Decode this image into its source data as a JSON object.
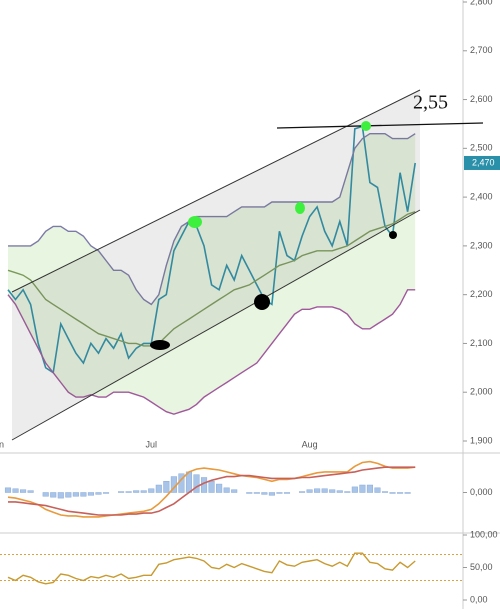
{
  "chart_data": [
    {
      "type": "line",
      "categories": [
        "n",
        null,
        null,
        null,
        null,
        null,
        null,
        null,
        null,
        null,
        null,
        null,
        null,
        null,
        null,
        null,
        null,
        null,
        null,
        "Jul",
        null,
        null,
        null,
        null,
        null,
        null,
        null,
        null,
        null,
        null,
        null,
        null,
        null,
        null,
        null,
        null,
        null,
        null,
        null,
        null,
        "Aug",
        null,
        null,
        null,
        null,
        null,
        null,
        null,
        null,
        null,
        null,
        null,
        null,
        null,
        null
      ],
      "series": [
        {
          "name": "price",
          "color": "#2a8fa8",
          "values": [
            2210,
            2190,
            2210,
            2180,
            2100,
            2050,
            2040,
            2140,
            2110,
            2080,
            2060,
            2100,
            2080,
            2110,
            2090,
            2120,
            2070,
            2090,
            2100,
            2100,
            2190,
            2200,
            2290,
            2320,
            2350,
            2340,
            2300,
            2220,
            2210,
            2260,
            2230,
            2280,
            2250,
            2220,
            2190,
            2180,
            2330,
            2280,
            2270,
            2320,
            2360,
            2380,
            2330,
            2300,
            2350,
            2300,
            2540,
            2545,
            2430,
            2420,
            2340,
            2320,
            2450,
            2370,
            2470
          ]
        },
        {
          "name": "upper",
          "color": "#7b7ba8",
          "values": [
            2300,
            2300,
            2300,
            2300,
            2310,
            2330,
            2340,
            2340,
            2330,
            2330,
            2320,
            2300,
            2290,
            2270,
            2250,
            2250,
            2240,
            2210,
            2190,
            2180,
            2200,
            2260,
            2310,
            2340,
            2350,
            2360,
            2360,
            2360,
            2360,
            2360,
            2370,
            2380,
            2380,
            2380,
            2380,
            2390,
            2390,
            2390,
            2390,
            2390,
            2390,
            2390,
            2390,
            2390,
            2400,
            2450,
            2500,
            2520,
            2530,
            2530,
            2530,
            2520,
            2520,
            2520,
            2530
          ]
        },
        {
          "name": "lower",
          "color": "#a0589c",
          "values": [
            2200,
            2180,
            2150,
            2120,
            2090,
            2060,
            2040,
            2020,
            2000,
            1990,
            1990,
            1995,
            1990,
            1990,
            2000,
            2000,
            2000,
            1995,
            1990,
            1980,
            1970,
            1960,
            1955,
            1960,
            1965,
            1975,
            1990,
            2000,
            2010,
            2020,
            2030,
            2040,
            2050,
            2060,
            2080,
            2100,
            2120,
            2140,
            2160,
            2170,
            2170,
            2175,
            2175,
            2175,
            2170,
            2160,
            2140,
            2130,
            2130,
            2140,
            2150,
            2160,
            2180,
            2210,
            2210
          ]
        },
        {
          "name": "middle",
          "color": "#7a9a5a",
          "values": [
            2250,
            2245,
            2240,
            2230,
            2210,
            2190,
            2180,
            2170,
            2160,
            2150,
            2140,
            2130,
            2120,
            2115,
            2110,
            2105,
            2100,
            2100,
            2095,
            2095,
            2100,
            2115,
            2130,
            2140,
            2150,
            2160,
            2170,
            2180,
            2190,
            2200,
            2210,
            2215,
            2220,
            2230,
            2240,
            2250,
            2260,
            2265,
            2270,
            2280,
            2285,
            2290,
            2290,
            2290,
            2295,
            2300,
            2310,
            2320,
            2330,
            2335,
            2340,
            2345,
            2355,
            2365,
            2370
          ]
        }
      ],
      "ylim": [
        1900,
        2800
      ],
      "yticks": [
        {
          "value": 1900,
          "label": "1,900"
        },
        {
          "value": 2000,
          "label": "2,000"
        },
        {
          "value": 2100,
          "label": "2,100"
        },
        {
          "value": 2200,
          "label": "2,200"
        },
        {
          "value": 2300,
          "label": "2,300"
        },
        {
          "value": 2400,
          "label": "2,400"
        },
        {
          "value": 2500,
          "label": "2,500"
        },
        {
          "value": 2600,
          "label": "2,600"
        },
        {
          "value": 2700,
          "label": "2,700"
        },
        {
          "value": 2800,
          "label": "2,800"
        }
      ],
      "last_price": {
        "value": 2470,
        "label": "2,470"
      },
      "annotation": "2,55"
    },
    {
      "type": "combo",
      "series": [
        {
          "name": "histogram",
          "kind": "bar",
          "color": "#a8c4e8",
          "values": [
            5,
            4,
            3,
            2,
            0,
            -4,
            -5,
            -6,
            -5,
            -4,
            -4,
            -3,
            -2,
            -1,
            0,
            1,
            1,
            2,
            2,
            4,
            8,
            12,
            17,
            20,
            22,
            19,
            16,
            12,
            9,
            5,
            3,
            0,
            -1,
            -1,
            -2,
            -3,
            -1,
            -1,
            0,
            1,
            3,
            4,
            4,
            3,
            2,
            1,
            6,
            8,
            8,
            5,
            1,
            -1,
            -1,
            -1,
            0
          ]
        },
        {
          "name": "macd",
          "kind": "line",
          "color": "#e89a3c",
          "values": [
            -5,
            -6,
            -8,
            -10,
            -13,
            -18,
            -21,
            -24,
            -25,
            -25,
            -26,
            -26,
            -26,
            -25,
            -24,
            -23,
            -22,
            -21,
            -20,
            -18,
            -12,
            -4,
            5,
            14,
            22,
            25,
            26,
            25,
            24,
            22,
            20,
            18,
            17,
            16,
            14,
            12,
            14,
            14,
            15,
            17,
            19,
            21,
            22,
            22,
            22,
            22,
            28,
            32,
            33,
            31,
            28,
            26,
            26,
            26,
            27
          ]
        },
        {
          "name": "signal",
          "kind": "line",
          "color": "#c8605a",
          "values": [
            -10,
            -10,
            -11,
            -12,
            -13,
            -14,
            -16,
            -18,
            -20,
            -21,
            -22,
            -23,
            -24,
            -24,
            -24,
            -24,
            -23,
            -23,
            -22,
            -22,
            -20,
            -16,
            -12,
            -6,
            0,
            6,
            10,
            13,
            15,
            17,
            17,
            18,
            18,
            17,
            16,
            15,
            15,
            15,
            15,
            16,
            16,
            17,
            18,
            19,
            20,
            21,
            22,
            24,
            25,
            26,
            27,
            27,
            27,
            27,
            27
          ]
        }
      ],
      "ylim": [
        -40,
        40
      ],
      "yticks": [
        {
          "value": 0,
          "label": "0,000"
        }
      ]
    },
    {
      "type": "line",
      "series": [
        {
          "name": "rsi",
          "color": "#c89a30",
          "values": [
            35,
            30,
            38,
            35,
            28,
            25,
            27,
            40,
            38,
            33,
            30,
            36,
            34,
            38,
            35,
            40,
            33,
            35,
            38,
            38,
            55,
            57,
            62,
            64,
            66,
            64,
            60,
            50,
            48,
            55,
            50,
            56,
            52,
            48,
            44,
            42,
            60,
            54,
            52,
            58,
            60,
            62,
            56,
            52,
            58,
            52,
            72,
            72,
            58,
            56,
            48,
            46,
            58,
            50,
            60
          ]
        }
      ],
      "ylim": [
        0,
        100
      ],
      "yticks": [
        {
          "value": 0,
          "label": "0,00"
        },
        {
          "value": 50,
          "label": "50,00"
        },
        {
          "value": 100,
          "label": "100,00"
        }
      ],
      "levels": [
        70,
        30
      ]
    }
  ]
}
